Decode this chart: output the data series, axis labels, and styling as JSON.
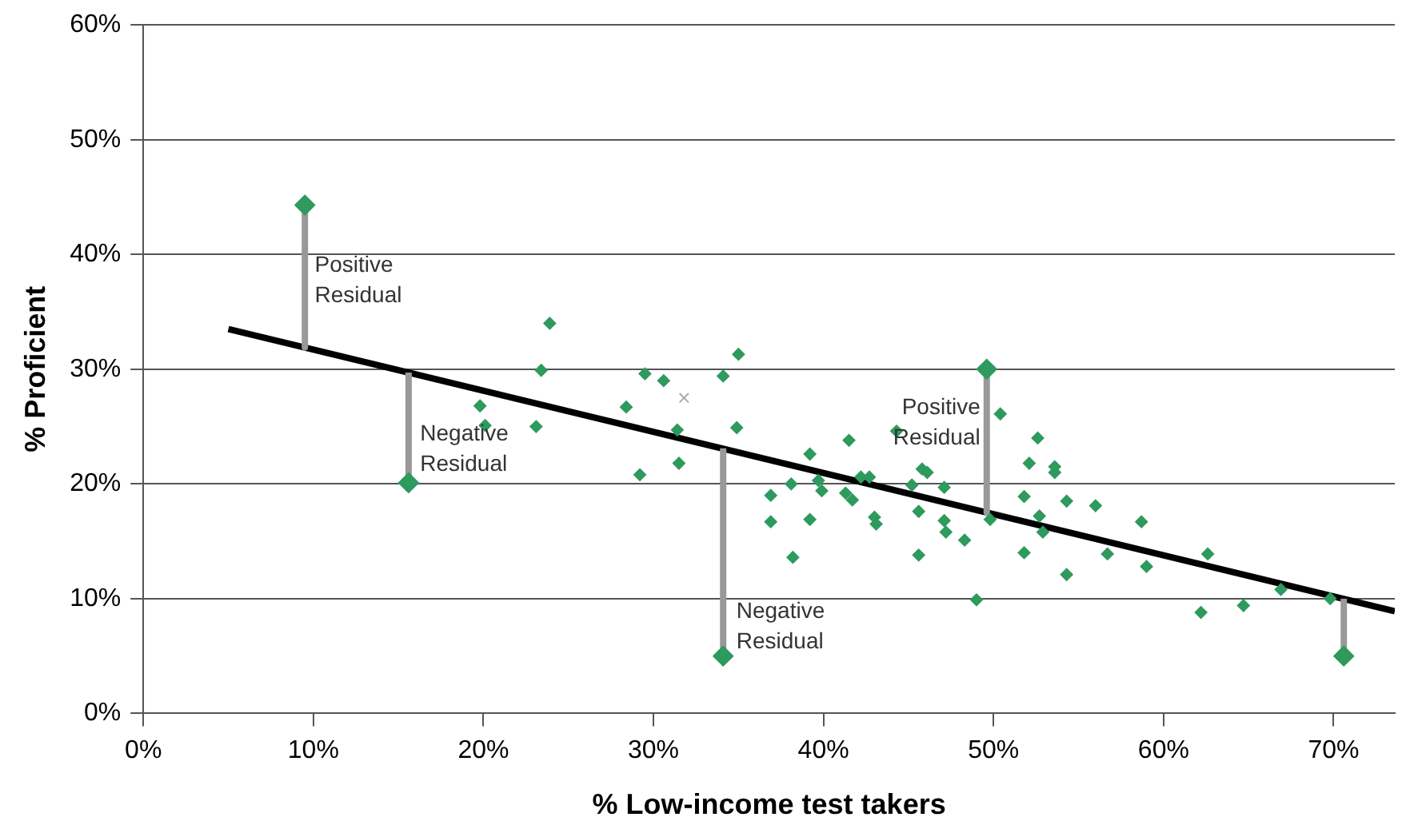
{
  "chart_data": {
    "type": "scatter",
    "xlabel": "% Low-income test takers",
    "ylabel": "% Proficient",
    "xlim": [
      0,
      73.6
    ],
    "xticks": [
      {
        "value": 0,
        "label": "0%"
      },
      {
        "value": 10,
        "label": "10%"
      },
      {
        "value": 20,
        "label": "20%"
      },
      {
        "value": 30,
        "label": "30%"
      },
      {
        "value": 40,
        "label": "40%"
      },
      {
        "value": 50,
        "label": "50%"
      },
      {
        "value": 60,
        "label": "60%"
      },
      {
        "value": 70,
        "label": "70%"
      }
    ],
    "ylim": [
      0,
      60
    ],
    "yticks": [
      {
        "value": 0,
        "label": "0%"
      },
      {
        "value": 10,
        "label": "10%"
      },
      {
        "value": 20,
        "label": "20%"
      },
      {
        "value": 30,
        "label": "30%"
      },
      {
        "value": 40,
        "label": "40%"
      },
      {
        "value": 50,
        "label": "50%"
      },
      {
        "value": 60,
        "label": "60%"
      }
    ],
    "grid": "y",
    "legend": false,
    "marker": "diamond",
    "series": [
      {
        "type": "line",
        "color": "#999999",
        "marker": "none",
        "x": [
          9.5,
          9.5
        ],
        "values": [
          44.3,
          31.9
        ]
      },
      {
        "type": "line",
        "color": "#999999",
        "marker": "none",
        "x": [
          15.6,
          15.6
        ],
        "values": [
          20.1,
          29.7
        ]
      },
      {
        "type": "line",
        "color": "#999999",
        "marker": "none",
        "x": [
          34.1,
          34.1
        ],
        "values": [
          5.0,
          23.1
        ]
      },
      {
        "type": "line",
        "color": "#999999",
        "marker": "none",
        "x": [
          49.6,
          49.6
        ],
        "values": [
          30.0,
          17.5
        ]
      },
      {
        "type": "line",
        "color": "#999999",
        "marker": "none",
        "x": [
          70.6,
          70.6
        ],
        "values": [
          5.0,
          10.0
        ]
      },
      {
        "type": "line",
        "color": "#000000",
        "marker": "none",
        "x": [
          5,
          73.6
        ],
        "values": [
          33.5,
          8.9
        ]
      },
      {
        "color": "#2e9a5e",
        "x": [
          19.8,
          20.1,
          23.1,
          23.4,
          23.9,
          28.4,
          29.5,
          30.6,
          34.1,
          35.0,
          29.2,
          31.4,
          34.9,
          31.5,
          39.2,
          41.5,
          36.9,
          38.1,
          39.7,
          39.9,
          41.3,
          41.7,
          42.2,
          42.7,
          36.9,
          39.2,
          38.2,
          43.0,
          43.1,
          44.3,
          45.2,
          45.6,
          45.8,
          46.1,
          47.1,
          47.1,
          47.2,
          48.3,
          45.6,
          49.0,
          50.4,
          49.8,
          51.8,
          51.8,
          52.1,
          52.6,
          52.7,
          52.9,
          53.6,
          53.6,
          54.3,
          54.3,
          56.0,
          56.7,
          58.7,
          59.0,
          62.2,
          62.6,
          64.7,
          66.9,
          69.8
        ],
        "values": [
          26.8,
          25.1,
          25.0,
          29.9,
          34.0,
          26.7,
          29.6,
          29.0,
          29.4,
          31.3,
          20.8,
          24.7,
          24.9,
          21.8,
          22.6,
          23.8,
          19.0,
          20.0,
          20.3,
          19.4,
          19.2,
          18.6,
          20.6,
          20.6,
          16.7,
          16.9,
          13.6,
          17.1,
          16.5,
          24.6,
          19.9,
          17.6,
          21.3,
          21.0,
          19.7,
          16.8,
          15.8,
          15.1,
          13.8,
          9.9,
          26.1,
          16.9,
          18.9,
          14.0,
          21.8,
          24.0,
          17.2,
          15.8,
          21.5,
          21.0,
          18.5,
          12.1,
          18.1,
          13.9,
          16.7,
          12.8,
          8.8,
          13.9,
          9.4,
          10.8,
          10.0
        ]
      },
      {
        "color": "#2e9a5e",
        "x": [
          9.5,
          15.6,
          34.1,
          49.6,
          70.6
        ],
        "values": [
          44.3,
          20.1,
          5.0,
          30.0,
          5.0
        ]
      },
      {
        "color": "#aaaaaa",
        "marker": "cross",
        "x": [
          31.8
        ],
        "values": [
          27.5
        ]
      }
    ],
    "annotations": [
      {
        "text": "Positive Residual",
        "x": 9.7,
        "y": 40.0
      },
      {
        "text": "Negative Residual",
        "x": 15.9,
        "y": 25.3
      },
      {
        "text": "Negative Residual",
        "x": 34.5,
        "y": 9.8
      },
      {
        "text": "Positive Residual",
        "x": 49.6,
        "y": 27.6
      }
    ]
  }
}
